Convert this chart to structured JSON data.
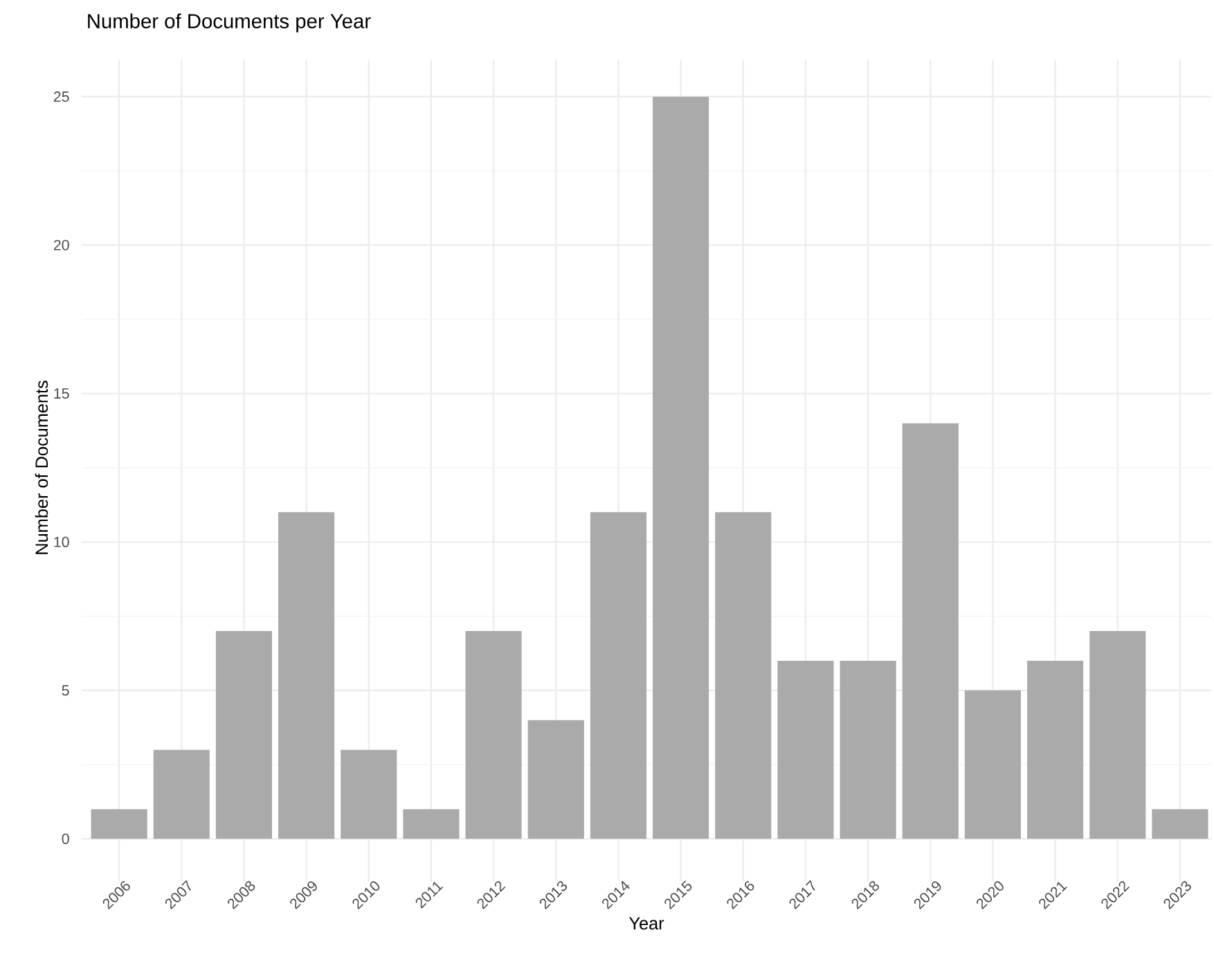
{
  "chart_data": {
    "type": "bar",
    "title": "Number of Documents per Year",
    "xlabel": "Year",
    "ylabel": "Number of Documents",
    "categories": [
      "2006",
      "2007",
      "2008",
      "2009",
      "2010",
      "2011",
      "2012",
      "2013",
      "2014",
      "2015",
      "2016",
      "2017",
      "2018",
      "2019",
      "2020",
      "2021",
      "2022",
      "2023"
    ],
    "values": [
      1,
      3,
      7,
      11,
      3,
      1,
      7,
      4,
      11,
      25,
      11,
      6,
      6,
      14,
      5,
      6,
      7,
      1
    ],
    "color": "#aaaaaa",
    "ylim": [
      -1.25,
      26.25
    ],
    "yticks": [
      0,
      5,
      10,
      15,
      20,
      25
    ],
    "grid": true
  }
}
